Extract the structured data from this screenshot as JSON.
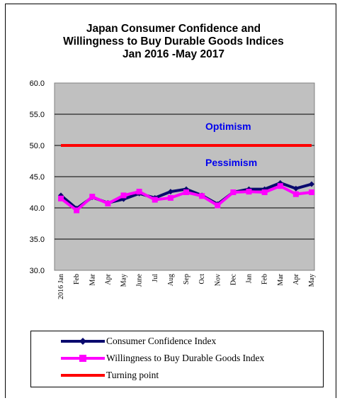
{
  "chart_data": {
    "type": "line",
    "title_lines": [
      "Japan Consumer Confidence and",
      "Willingness to Buy Durable Goods Indices",
      "Jan 2016 -May 2017"
    ],
    "categories": [
      "2016 Jan",
      "Feb",
      "Mar",
      "Apr",
      "May",
      "June",
      "Jul",
      "Aug",
      "Sep",
      "Oct",
      "Nov",
      "Dec",
      "Jan",
      "Feb",
      "Mar",
      "Apr",
      "May"
    ],
    "y_ticks": [
      "30.0",
      "35.0",
      "40.0",
      "45.0",
      "50.0",
      "55.0",
      "60.0"
    ],
    "ylim": [
      30,
      60
    ],
    "grid": true,
    "legend_position": "bottom",
    "annotations": [
      "Optimism",
      "Pessimism"
    ],
    "series": [
      {
        "name": "Consumer Confidence Index",
        "color": "#0a0a6e",
        "marker": "diamond",
        "values": [
          42.0,
          39.9,
          41.7,
          40.8,
          41.4,
          42.3,
          41.6,
          42.6,
          43.0,
          42.0,
          40.6,
          42.5,
          43.0,
          43.0,
          44.0,
          43.1,
          43.8
        ]
      },
      {
        "name": "Willingness to Buy Durable Goods Index",
        "color": "#ff00ff",
        "marker": "square",
        "values": [
          41.5,
          39.6,
          41.8,
          40.7,
          42.0,
          42.6,
          41.3,
          41.6,
          42.5,
          41.9,
          40.4,
          42.5,
          42.6,
          42.5,
          43.5,
          42.2,
          42.5
        ]
      },
      {
        "name": "Turning point",
        "color": "#ff0000",
        "marker": "none",
        "values": [
          50,
          50,
          50,
          50,
          50,
          50,
          50,
          50,
          50,
          50,
          50,
          50,
          50,
          50,
          50,
          50,
          50
        ]
      }
    ]
  }
}
